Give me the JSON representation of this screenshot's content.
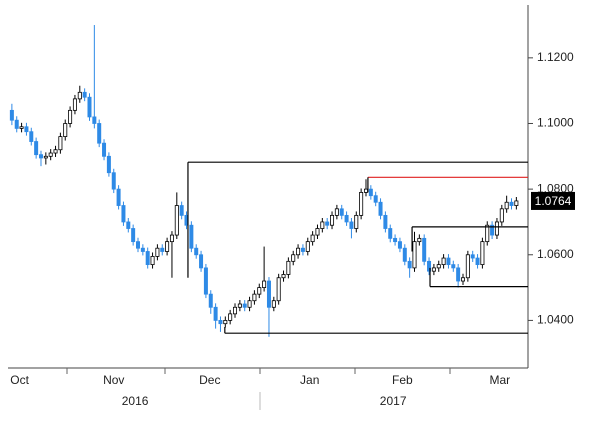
{
  "chart_data": {
    "type": "candlestick",
    "open": [
      1.104,
      1.101,
      1.0985,
      1.099,
      1.0975,
      1.0945,
      1.0905,
      1.0895,
      1.09,
      1.091,
      1.092,
      1.096,
      1.1,
      1.104,
      1.1075,
      1.1095,
      1.108,
      1.102,
      1.1,
      1.094,
      1.09,
      1.085,
      1.08,
      1.075,
      1.07,
      1.068,
      1.064,
      1.062,
      1.061,
      1.057,
      1.0595,
      1.062,
      1.061,
      1.064,
      1.066,
      1.075,
      1.072,
      1.069,
      1.062,
      1.06,
      1.056,
      1.048,
      1.044,
      1.04,
      1.039,
      1.04,
      1.042,
      1.044,
      1.045,
      1.044,
      1.046,
      1.048,
      1.05,
      1.052,
      1.044,
      1.046,
      1.053,
      1.054,
      1.058,
      1.06,
      1.062,
      1.061,
      1.064,
      1.066,
      1.068,
      1.07,
      1.069,
      1.072,
      1.074,
      1.072,
      1.07,
      1.068,
      1.072,
      1.079,
      1.08,
      1.078,
      1.076,
      1.072,
      1.068,
      1.065,
      1.064,
      1.062,
      1.058,
      1.056,
      1.064,
      1.065,
      1.058,
      1.055,
      1.056,
      1.057,
      1.059,
      1.057,
      1.056,
      1.052,
      1.053,
      1.06,
      1.059,
      1.057,
      1.064,
      1.069,
      1.066,
      1.07,
      1.074,
      1.076,
      1.075
    ],
    "high": [
      1.106,
      1.1022,
      1.1002,
      1.1002,
      1.0987,
      1.0957,
      1.0917,
      1.0912,
      1.0922,
      1.0932,
      1.0972,
      1.1012,
      1.1052,
      1.1087,
      1.1115,
      1.1107,
      1.1092,
      1.13,
      1.1012,
      1.0952,
      1.0912,
      1.0862,
      1.0812,
      1.0762,
      1.0712,
      1.0692,
      1.0652,
      1.0632,
      1.0622,
      1.0607,
      1.0632,
      1.0632,
      1.0652,
      1.0672,
      1.079,
      1.0762,
      1.0732,
      1.0702,
      1.0632,
      1.0612,
      1.0572,
      1.0492,
      1.0452,
      1.0412,
      1.0412,
      1.0432,
      1.0452,
      1.0462,
      1.0462,
      1.0472,
      1.0492,
      1.0512,
      1.0625,
      1.0532,
      1.0472,
      1.0542,
      1.0552,
      1.0592,
      1.0612,
      1.0632,
      1.0632,
      1.0652,
      1.0672,
      1.0692,
      1.0712,
      1.0712,
      1.0732,
      1.0752,
      1.0752,
      1.0732,
      1.0712,
      1.0732,
      1.0802,
      1.083,
      1.0812,
      1.0792,
      1.0772,
      1.0732,
      1.0692,
      1.0662,
      1.0652,
      1.0632,
      1.0592,
      1.067,
      1.0662,
      1.0662,
      1.0592,
      1.0572,
      1.0582,
      1.0602,
      1.0602,
      1.0582,
      1.0572,
      1.0542,
      1.0612,
      1.0612,
      1.0602,
      1.0652,
      1.0702,
      1.0702,
      1.0712,
      1.0752,
      1.078,
      1.0772,
      1.0776
    ],
    "low": [
      1.0995,
      1.0973,
      1.0973,
      1.0963,
      1.0933,
      1.0893,
      1.087,
      1.0875,
      1.0888,
      1.0898,
      1.0908,
      1.0948,
      1.0988,
      1.1028,
      1.1063,
      1.1068,
      1.1008,
      1.0985,
      1.0928,
      1.0888,
      1.0838,
      1.0788,
      1.0738,
      1.0688,
      1.0668,
      1.0628,
      1.0608,
      1.0598,
      1.0558,
      1.0558,
      1.0583,
      1.0598,
      1.0598,
      1.053,
      1.0648,
      1.0708,
      1.0678,
      1.0608,
      1.0588,
      1.0548,
      1.0468,
      1.042,
      1.0375,
      1.0365,
      1.0378,
      1.0388,
      1.0408,
      1.0428,
      1.0428,
      1.0428,
      1.0448,
      1.0468,
      1.0488,
      1.035,
      1.0428,
      1.0448,
      1.0518,
      1.0528,
      1.0568,
      1.0588,
      1.0598,
      1.0598,
      1.0628,
      1.0648,
      1.0668,
      1.0678,
      1.0678,
      1.0708,
      1.0708,
      1.0688,
      1.065,
      1.0668,
      1.0708,
      1.0778,
      1.0768,
      1.0748,
      1.0708,
      1.0668,
      1.0638,
      1.0628,
      1.0608,
      1.0568,
      1.053,
      1.0548,
      1.0628,
      1.0568,
      1.0538,
      1.0538,
      1.0548,
      1.0558,
      1.0558,
      1.0548,
      1.05,
      1.0508,
      1.0518,
      1.0578,
      1.0558,
      1.0558,
      1.0628,
      1.0648,
      1.0648,
      1.0688,
      1.0728,
      1.0738,
      1.0738
    ],
    "close": [
      1.101,
      1.0985,
      1.099,
      1.0975,
      1.0945,
      1.0905,
      1.0895,
      1.09,
      1.091,
      1.092,
      1.096,
      1.1,
      1.104,
      1.1075,
      1.1095,
      1.108,
      1.102,
      1.1,
      1.094,
      1.09,
      1.085,
      1.08,
      1.075,
      1.07,
      1.068,
      1.064,
      1.062,
      1.061,
      1.057,
      1.0595,
      1.062,
      1.061,
      1.064,
      1.066,
      1.075,
      1.072,
      1.069,
      1.062,
      1.06,
      1.056,
      1.048,
      1.044,
      1.04,
      1.039,
      1.04,
      1.042,
      1.044,
      1.045,
      1.044,
      1.046,
      1.048,
      1.05,
      1.052,
      1.044,
      1.046,
      1.053,
      1.054,
      1.058,
      1.06,
      1.062,
      1.061,
      1.064,
      1.066,
      1.068,
      1.07,
      1.069,
      1.072,
      1.074,
      1.072,
      1.07,
      1.068,
      1.072,
      1.079,
      1.08,
      1.078,
      1.076,
      1.072,
      1.068,
      1.065,
      1.064,
      1.062,
      1.058,
      1.056,
      1.064,
      1.065,
      1.058,
      1.055,
      1.056,
      1.057,
      1.059,
      1.057,
      1.056,
      1.052,
      1.053,
      1.06,
      1.059,
      1.057,
      1.064,
      1.069,
      1.066,
      1.07,
      1.074,
      1.076,
      1.075,
      1.0764
    ],
    "up_color": "#ffffff",
    "down_color": "#2e8ae6",
    "xlim": [
      -0.8,
      106.4
    ],
    "xticks": [
      {
        "value": 1.6,
        "label": "Oct"
      },
      {
        "value": 21,
        "label": "Nov"
      },
      {
        "value": 40.8,
        "label": "Dec"
      },
      {
        "value": 61.4,
        "label": "Jan"
      },
      {
        "value": 80.5,
        "label": "Feb"
      },
      {
        "value": 100.6,
        "label": "Mar"
      }
    ],
    "year_labels": [
      {
        "value": 25.4,
        "label": "2016"
      },
      {
        "value": 78.6,
        "label": "2017"
      }
    ],
    "ylim": [
      1.0255,
      1.1361
    ],
    "yticks": [
      {
        "value": 1.04,
        "label": "1.0400"
      },
      {
        "value": 1.06,
        "label": "1.0600"
      },
      {
        "value": 1.08,
        "label": "1.0800"
      },
      {
        "value": 1.1,
        "label": "1.1000"
      },
      {
        "value": 1.12,
        "label": "1.1200"
      }
    ],
    "grid": false,
    "levels": [
      {
        "value": 1.0882,
        "from": 36.3,
        "drop": 1.053,
        "color": "#000000"
      },
      {
        "value": 1.0836,
        "from": 73.4,
        "drop": 1.079,
        "color": "#e02020"
      },
      {
        "value": 1.0685,
        "from": 82.5,
        "drop": 1.061,
        "color": "#000000"
      },
      {
        "value": 1.0503,
        "from": 86.2,
        "drop": 1.056,
        "color": "#000000"
      },
      {
        "value": 1.0361,
        "from": 43.9,
        "drop": 1.038,
        "color": "#000000"
      }
    ]
  }
}
